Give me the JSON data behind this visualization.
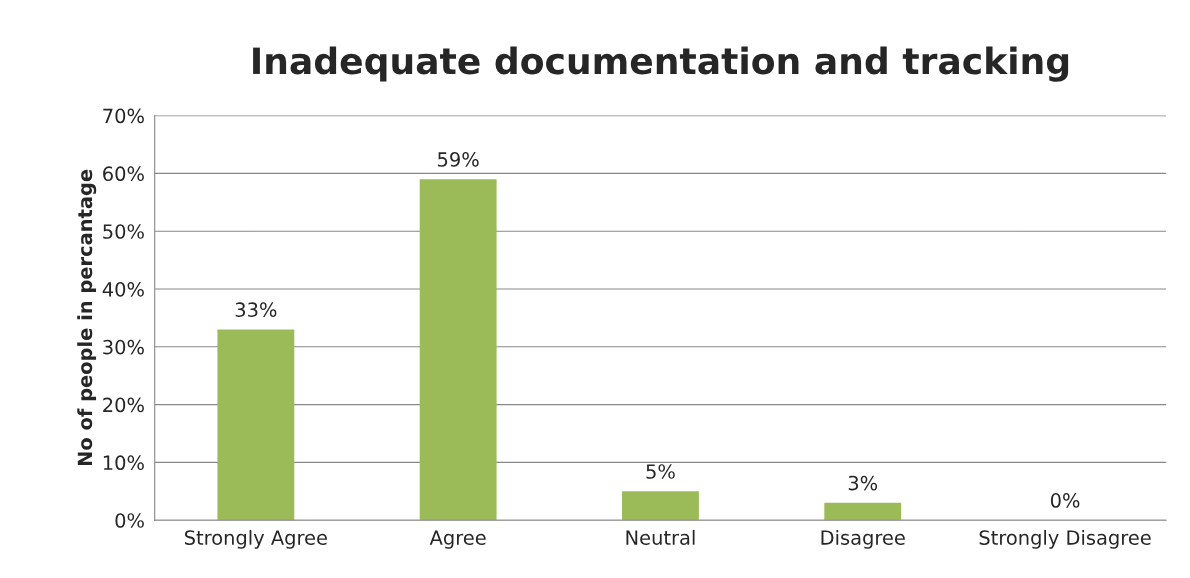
{
  "chart_data": {
    "type": "bar",
    "title": "Inadequate documentation and tracking",
    "ylabel": "No of people in percantage",
    "categories": [
      "Strongly Agree",
      "Agree",
      "Neutral",
      "Disagree",
      "Strongly Disagree"
    ],
    "values": [
      33,
      59,
      5,
      3,
      0
    ],
    "value_labels": [
      "33%",
      "59%",
      "5%",
      "3%",
      "0%"
    ],
    "color": "#9bbb59",
    "ylim": [
      0,
      70
    ],
    "yticks": [
      {
        "value": 0,
        "label": "0%"
      },
      {
        "value": 10,
        "label": "10%"
      },
      {
        "value": 20,
        "label": "20%"
      },
      {
        "value": 30,
        "label": "30%"
      },
      {
        "value": 40,
        "label": "40%"
      },
      {
        "value": 50,
        "label": "50%"
      },
      {
        "value": 60,
        "label": "60%"
      },
      {
        "value": 70,
        "label": "70%"
      }
    ],
    "grid": "y",
    "legend": false
  }
}
